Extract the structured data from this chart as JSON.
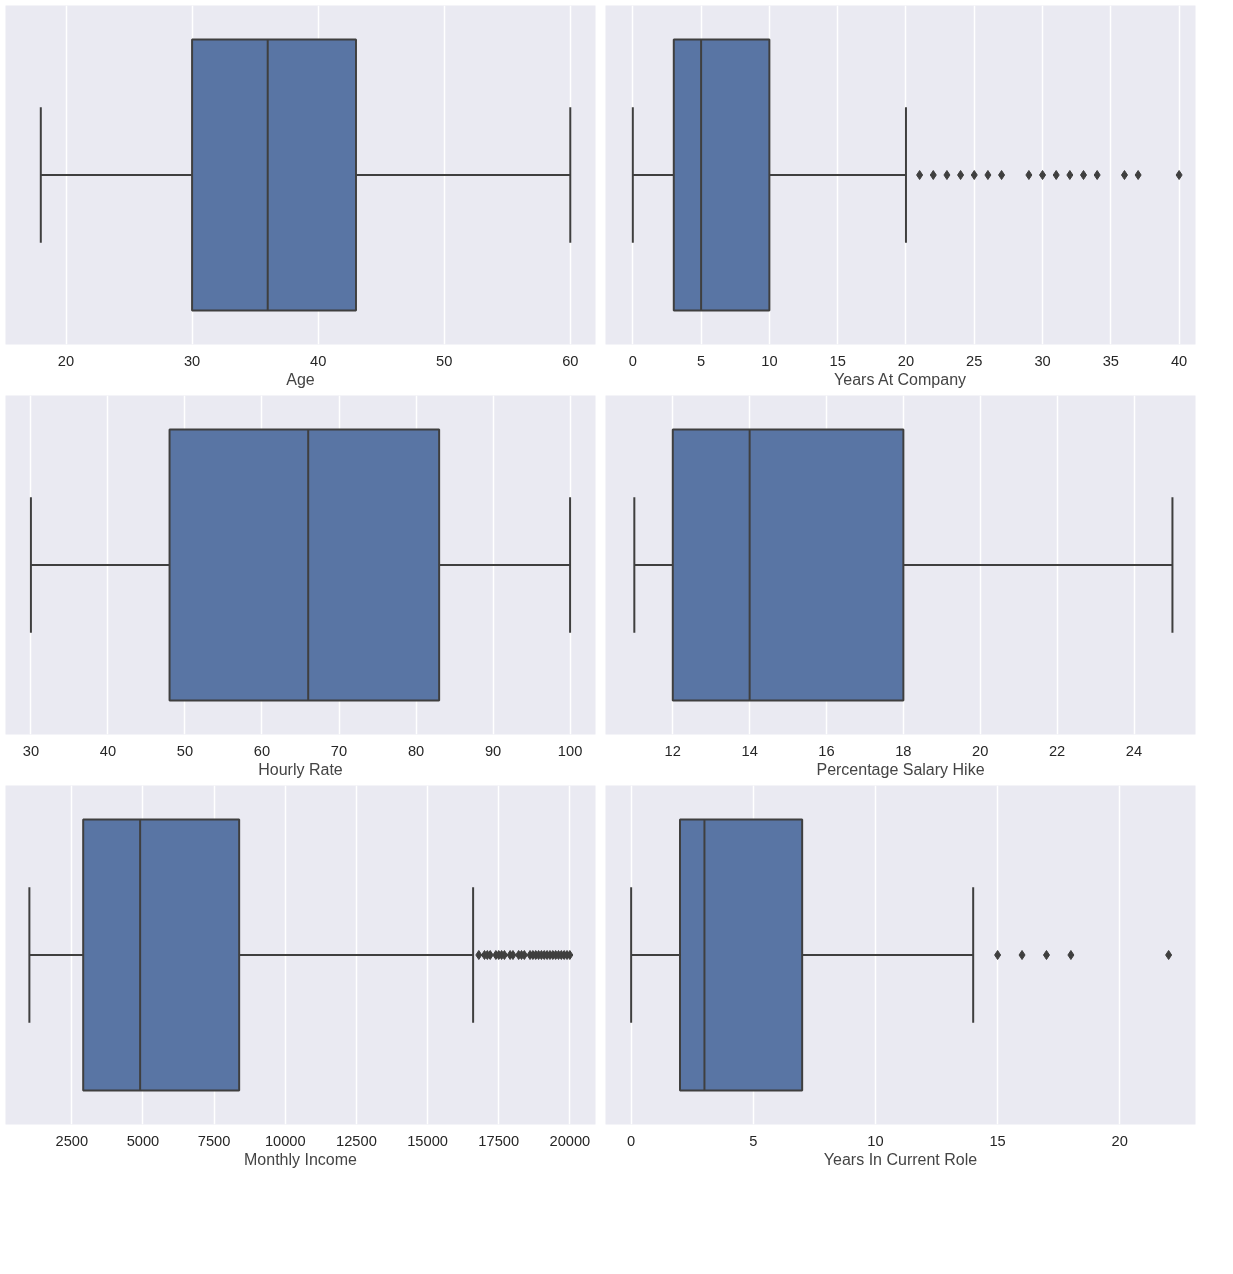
{
  "chart_data": [
    {
      "type": "box",
      "orientation": "horizontal",
      "xlabel": "Age",
      "categories": [
        null
      ],
      "color": "#5975a4",
      "xlim": [
        15.2,
        62
      ],
      "xticks": [
        20,
        30,
        40,
        50,
        60
      ],
      "grid": "x",
      "tick_labels": "x",
      "marker": "diamond",
      "boxes": [
        {
          "low": 18,
          "q1": 30,
          "median": 36,
          "q3": 43,
          "high": 60
        }
      ]
    },
    {
      "type": "box",
      "orientation": "horizontal",
      "xlabel": "Years At Company",
      "categories": [
        null
      ],
      "color": "#5975a4",
      "xlim": [
        -2,
        41.2
      ],
      "xticks": [
        0,
        5,
        10,
        15,
        20,
        25,
        30,
        35,
        40
      ],
      "grid": "x",
      "tick_labels": "x",
      "marker": "diamond",
      "boxes": [
        {
          "low": 0,
          "q1": 3,
          "median": 5,
          "q3": 10,
          "high": 20,
          "outliers": [
            21,
            22,
            23,
            24,
            25,
            26,
            27,
            29,
            30,
            31,
            32,
            33,
            34,
            36,
            37,
            40
          ]
        }
      ]
    },
    {
      "type": "box",
      "orientation": "horizontal",
      "xlabel": "Hourly Rate",
      "categories": [
        null
      ],
      "color": "#5975a4",
      "xlim": [
        26.7,
        103.3
      ],
      "xticks": [
        30,
        40,
        50,
        60,
        70,
        80,
        90,
        100
      ],
      "grid": "x",
      "tick_labels": "x",
      "marker": "diamond",
      "boxes": [
        {
          "low": 30,
          "q1": 48,
          "median": 66,
          "q3": 83,
          "high": 100
        }
      ]
    },
    {
      "type": "box",
      "orientation": "horizontal",
      "xlabel": "Percentage Salary Hike",
      "categories": [
        null
      ],
      "color": "#5975a4",
      "xlim": [
        10.25,
        25.6
      ],
      "xticks": [
        12,
        14,
        16,
        18,
        20,
        22,
        24
      ],
      "grid": "x",
      "tick_labels": "x",
      "marker": "diamond",
      "boxes": [
        {
          "low": 11,
          "q1": 12,
          "median": 14,
          "q3": 18,
          "high": 25
        }
      ]
    },
    {
      "type": "box",
      "orientation": "horizontal",
      "xlabel": "Monthly Income",
      "categories": [
        null
      ],
      "color": "#5975a4",
      "xlim": [
        170,
        20900
      ],
      "xticks": [
        2500,
        5000,
        7500,
        10000,
        12500,
        15000,
        17500,
        20000
      ],
      "grid": "x",
      "tick_labels": "x",
      "marker": "diamond",
      "boxes": [
        {
          "low": 1009,
          "q1": 2900,
          "median": 4900,
          "q3": 8380,
          "high": 16600,
          "outliers": [
            16800,
            17000,
            17100,
            17200,
            17400,
            17500,
            17600,
            17700,
            17900,
            18000,
            18200,
            18300,
            18400,
            18600,
            18700,
            18800,
            18900,
            19000,
            19100,
            19200,
            19300,
            19400,
            19500,
            19600,
            19700,
            19800,
            19900,
            19999
          ]
        }
      ]
    },
    {
      "type": "box",
      "orientation": "horizontal",
      "xlabel": "Years In Current Role",
      "categories": [
        null
      ],
      "color": "#5975a4",
      "xlim": [
        -1.05,
        23.1
      ],
      "xticks": [
        0,
        5,
        10,
        15,
        20
      ],
      "grid": "x",
      "tick_labels": "x",
      "marker": "diamond",
      "boxes": [
        {
          "low": 0,
          "q1": 2,
          "median": 3,
          "q3": 7,
          "high": 14,
          "outliers": [
            15,
            16,
            17,
            18,
            22
          ]
        }
      ]
    }
  ]
}
